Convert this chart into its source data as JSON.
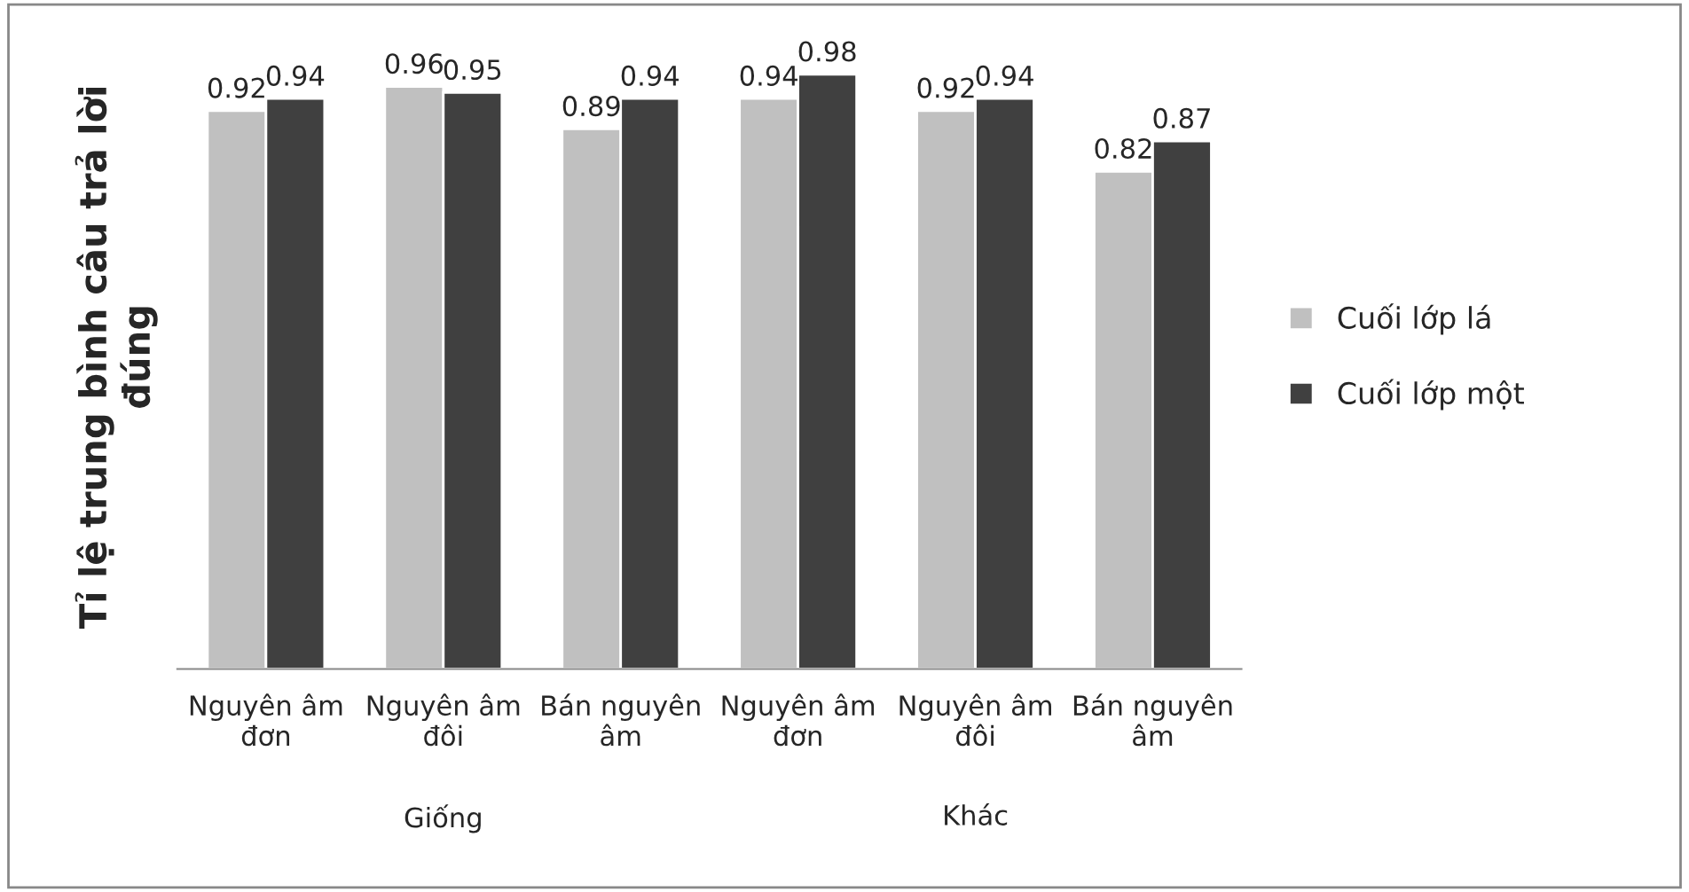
{
  "chart_data": {
    "type": "bar",
    "ylabel": "Tỉ lệ trung bình câu trả lời\nđúng",
    "categories": [
      "Nguyên âm\nđơn",
      "Nguyên âm\nđôi",
      "Bán nguyên\nâm",
      "Nguyên âm\nđơn",
      "Nguyên âm\nđôi",
      "Bán nguyên\nâm"
    ],
    "series": [
      {
        "name": "Cuối lớp lá",
        "color": "#c0c0c0",
        "values": [
          0.92,
          0.96,
          0.89,
          0.94,
          0.92,
          0.82
        ]
      },
      {
        "name": "Cuối lớp một",
        "color": "#404040",
        "values": [
          0.94,
          0.95,
          0.94,
          0.98,
          0.94,
          0.87
        ]
      }
    ],
    "tick_labels": "x",
    "data_labels": true,
    "legend": "right",
    "grid": false,
    "annotations": [
      "Giống",
      "Khác"
    ]
  }
}
